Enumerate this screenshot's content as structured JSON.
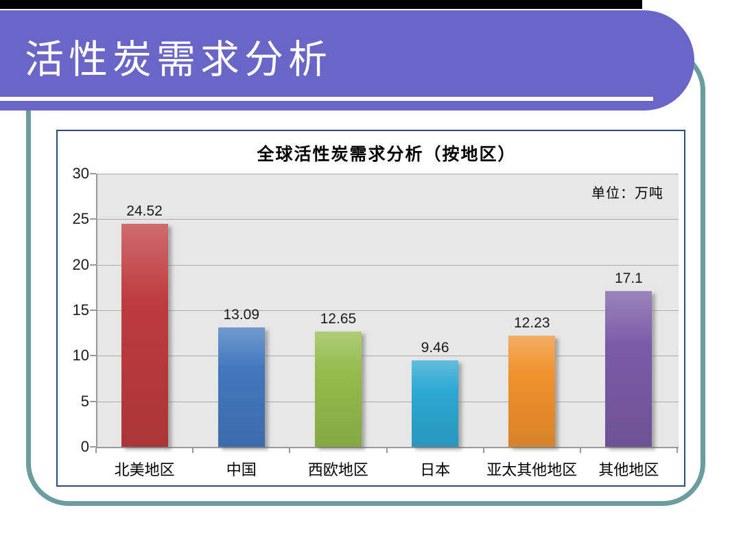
{
  "slide": {
    "title": "活性炭需求分析",
    "colors": {
      "banner": "#6966C7",
      "banner_rule": "#FFFFFF",
      "frame": "#6B9D9E",
      "chart_border": "#2E4C78",
      "top_bar": "#000000",
      "plot_background": "#E7E7E7",
      "gridline": "#ABABAB",
      "axis_line": "#9A9A9A"
    }
  },
  "chart_data": {
    "type": "bar",
    "title": "全球活性炭需求分析（按地区）",
    "unit_label": "单位：万吨",
    "categories": [
      "北美地区",
      "中国",
      "西欧地区",
      "日本",
      "亚太其他地区",
      "其他地区"
    ],
    "values": [
      24.52,
      13.09,
      12.65,
      9.46,
      12.23,
      17.1
    ],
    "value_labels": [
      "24.52",
      "13.09",
      "12.65",
      "9.46",
      "12.23",
      "17.1"
    ],
    "bar_colors": [
      "#BE3B3E",
      "#4277BE",
      "#94BB4B",
      "#2CA8D2",
      "#F0912D",
      "#7A5BA6"
    ],
    "xlabel": "",
    "ylabel": "",
    "ylim": [
      0,
      30
    ],
    "yticks": [
      0,
      5,
      10,
      15,
      20,
      25,
      30
    ],
    "grid": true,
    "legend_position": "none"
  }
}
